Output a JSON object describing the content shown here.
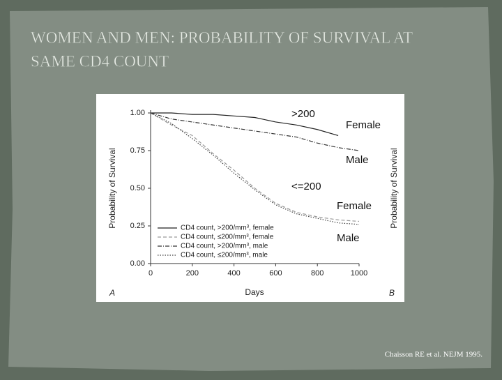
{
  "slide": {
    "title_lines": [
      "WOMEN AND MEN: PROBABILITY OF SURVIVAL AT",
      "SAME CD4 COUNT"
    ],
    "citation": "Chaisson RE et al. NEJM 1995."
  },
  "chart_data": {
    "type": "line",
    "x_label": "Days",
    "y_label": "Probability of Survival",
    "y_label_right": "Probability of Survival",
    "panel_labels": [
      "A",
      "B"
    ],
    "annotations": [
      ">200",
      "Female",
      "Male",
      "<=200",
      "Female",
      "Male"
    ],
    "x": [
      0,
      100,
      200,
      300,
      400,
      500,
      600,
      700,
      800,
      900,
      1000
    ],
    "xlim": [
      0,
      1000
    ],
    "xticks": [
      0,
      200,
      400,
      600,
      800,
      {
        "value": 1000,
        "label": "1000"
      }
    ],
    "ylim": [
      0,
      1
    ],
    "yticks": [
      {
        "value": 0,
        "label": "0.00"
      },
      {
        "value": 0.25,
        "label": "0.25"
      },
      {
        "value": 0.5,
        "label": "0.50"
      },
      {
        "value": 0.75,
        "label": "0.75"
      },
      {
        "value": 1,
        "label": "1.00"
      }
    ],
    "legend": "lower left",
    "grid": false,
    "series": [
      {
        "name": "CD4 count, >200/mm³, female",
        "color": "#222222",
        "dash": "none",
        "values": [
          1.0,
          1.0,
          0.99,
          0.99,
          0.98,
          0.97,
          0.94,
          0.92,
          0.89,
          0.85,
          null
        ]
      },
      {
        "name": "CD4 count, ≤200/mm³, female",
        "color": "#999999",
        "dash": "5 3",
        "values": [
          1.0,
          0.92,
          0.85,
          0.73,
          0.62,
          0.5,
          0.4,
          0.34,
          0.31,
          0.29,
          0.28
        ]
      },
      {
        "name": "CD4 count, >200/mm³, male",
        "color": "#333333",
        "dash": "6 2 1 2",
        "values": [
          1.0,
          0.96,
          0.94,
          0.92,
          0.9,
          0.88,
          0.86,
          0.84,
          0.8,
          0.77,
          0.75
        ]
      },
      {
        "name": "CD4 count, ≤200/mm³, male",
        "color": "#444444",
        "dash": "1.5 2",
        "values": [
          1.0,
          0.93,
          0.83,
          0.72,
          0.6,
          0.49,
          0.39,
          0.33,
          0.3,
          0.27,
          0.26
        ]
      }
    ]
  }
}
